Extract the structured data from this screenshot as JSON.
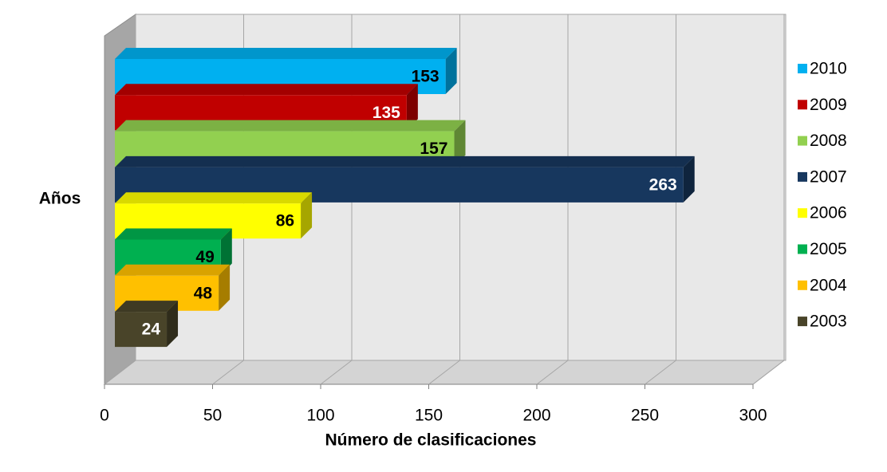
{
  "chart_data": {
    "type": "bar3d_horizontal",
    "ylabel": "Años",
    "xlabel": "Número de clasificaciones",
    "categories": [
      null
    ],
    "series": [
      {
        "name": "2010",
        "color": "#00b0f0",
        "values": [
          153
        ]
      },
      {
        "name": "2009",
        "color": "#c00000",
        "values": [
          135
        ]
      },
      {
        "name": "2008",
        "color": "#92d050",
        "values": [
          157
        ]
      },
      {
        "name": "2007",
        "color": "#17375e",
        "values": [
          263
        ]
      },
      {
        "name": "2006",
        "color": "#ffff00",
        "values": [
          86
        ]
      },
      {
        "name": "2005",
        "color": "#00b050",
        "values": [
          49
        ]
      },
      {
        "name": "2004",
        "color": "#ffc000",
        "values": [
          48
        ]
      },
      {
        "name": "2003",
        "color": "#494429",
        "values": [
          24
        ]
      }
    ],
    "xlim": [
      0,
      300
    ],
    "xticks": [
      0,
      50,
      100,
      150,
      200,
      250,
      300
    ],
    "grid": true,
    "legend": "right"
  }
}
